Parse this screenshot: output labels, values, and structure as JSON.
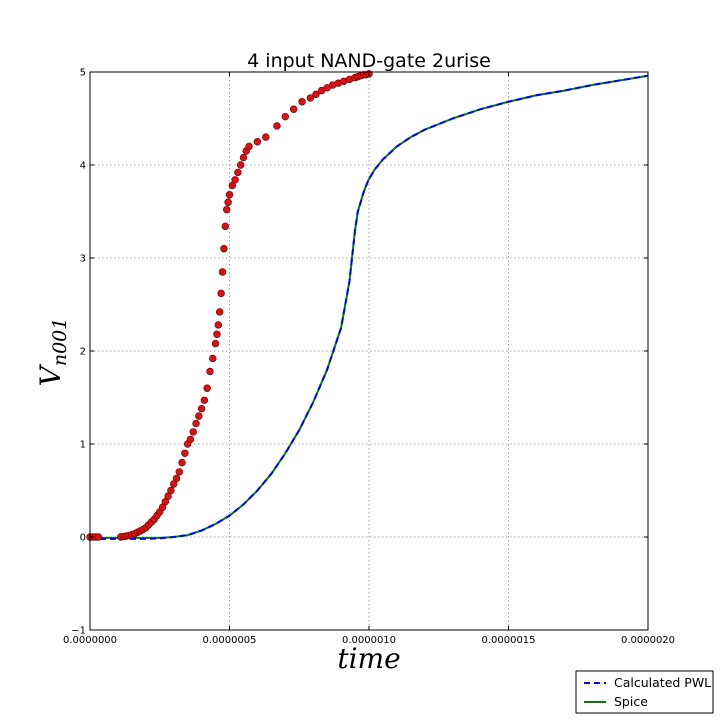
{
  "chart_data": {
    "type": "line",
    "title": "4 input NAND-gate   2urise",
    "xlabel": "time",
    "ylabel_main": "V",
    "ylabel_sub": "n001",
    "xlim": [
      0,
      2e-06
    ],
    "ylim": [
      -1,
      5
    ],
    "grid": true,
    "legend_position": "bottom-right-outside",
    "x_ticks": [
      {
        "value": 0,
        "label": "0.0000000"
      },
      {
        "value": 5e-07,
        "label": "0.0000005"
      },
      {
        "value": 1e-06,
        "label": "0.0000010"
      },
      {
        "value": 1.5e-06,
        "label": "0.0000015"
      },
      {
        "value": 2e-06,
        "label": "0.0000020"
      }
    ],
    "y_ticks": [
      {
        "value": -1,
        "label": "−1"
      },
      {
        "value": 0,
        "label": "0"
      },
      {
        "value": 1,
        "label": "1"
      },
      {
        "value": 2,
        "label": "2"
      },
      {
        "value": 3,
        "label": "3"
      },
      {
        "value": 4,
        "label": "4"
      },
      {
        "value": 5,
        "label": "5"
      }
    ],
    "series": [
      {
        "name": "Calculated PWL",
        "style": "dashed",
        "color": "#0000ff",
        "x": [
          0,
          5e-08,
          1e-07,
          1.5e-07,
          2e-07,
          2.5e-07,
          3e-07,
          3.5e-07,
          4e-07,
          4.5e-07,
          5e-07,
          5.5e-07,
          6e-07,
          6.5e-07,
          7e-07,
          7.5e-07,
          8e-07,
          8.5e-07,
          9e-07,
          9.3e-07,
          9.5e-07,
          9.6e-07,
          9.7e-07,
          9.8e-07,
          9.9e-07,
          1e-06,
          1.02e-06,
          1.05e-06,
          1.1e-06,
          1.15e-06,
          1.2e-06,
          1.3e-06,
          1.4e-06,
          1.5e-06,
          1.6e-06,
          1.7e-06,
          1.8e-06,
          1.9e-06,
          2e-06
        ],
        "y": [
          -0.02,
          -0.02,
          -0.02,
          -0.02,
          -0.02,
          -0.015,
          0.0,
          0.02,
          0.07,
          0.14,
          0.23,
          0.35,
          0.5,
          0.68,
          0.9,
          1.15,
          1.45,
          1.8,
          2.25,
          2.75,
          3.3,
          3.5,
          3.6,
          3.7,
          3.78,
          3.85,
          3.95,
          4.06,
          4.2,
          4.3,
          4.38,
          4.5,
          4.6,
          4.68,
          4.75,
          4.8,
          4.86,
          4.91,
          4.96
        ]
      },
      {
        "name": "Spice",
        "style": "solid",
        "color": "#007f00",
        "x": [
          0,
          5e-08,
          1e-07,
          1.5e-07,
          2e-07,
          2.5e-07,
          3e-07,
          3.5e-07,
          4e-07,
          4.5e-07,
          5e-07,
          5.5e-07,
          6e-07,
          6.5e-07,
          7e-07,
          7.5e-07,
          8e-07,
          8.5e-07,
          9e-07,
          9.3e-07,
          9.5e-07,
          9.6e-07,
          9.7e-07,
          9.8e-07,
          9.9e-07,
          1e-06,
          1.02e-06,
          1.05e-06,
          1.1e-06,
          1.15e-06,
          1.2e-06,
          1.3e-06,
          1.4e-06,
          1.5e-06,
          1.6e-06,
          1.7e-06,
          1.8e-06,
          1.9e-06,
          2e-06
        ],
        "y": [
          -0.01,
          -0.01,
          -0.01,
          -0.01,
          -0.01,
          -0.01,
          0.0,
          0.02,
          0.07,
          0.14,
          0.23,
          0.35,
          0.5,
          0.68,
          0.9,
          1.15,
          1.45,
          1.8,
          2.25,
          2.75,
          3.3,
          3.5,
          3.6,
          3.7,
          3.78,
          3.85,
          3.95,
          4.06,
          4.2,
          4.3,
          4.38,
          4.5,
          4.6,
          4.68,
          4.75,
          4.8,
          4.86,
          4.91,
          4.96
        ]
      },
      {
        "style": "markers",
        "color": "#dd1111",
        "x": [
          0,
          1e-08,
          2e-08,
          3e-08,
          1.1e-07,
          1.2e-07,
          1.3e-07,
          1.4e-07,
          1.5e-07,
          1.6e-07,
          1.7e-07,
          1.8e-07,
          1.9e-07,
          2e-07,
          2.1e-07,
          2.2e-07,
          2.3e-07,
          2.4e-07,
          2.5e-07,
          2.6e-07,
          2.7e-07,
          2.8e-07,
          2.9e-07,
          3e-07,
          3.1e-07,
          3.2e-07,
          3.3e-07,
          3.4e-07,
          3.5e-07,
          3.6e-07,
          3.7e-07,
          3.8e-07,
          3.9e-07,
          4e-07,
          4.1e-07,
          4.2e-07,
          4.3e-07,
          4.4e-07,
          4.5e-07,
          4.55e-07,
          4.6e-07,
          4.65e-07,
          4.7e-07,
          4.75e-07,
          4.8e-07,
          4.85e-07,
          4.9e-07,
          4.95e-07,
          5e-07,
          5.1e-07,
          5.2e-07,
          5.3e-07,
          5.4e-07,
          5.5e-07,
          5.6e-07,
          5.7e-07,
          6e-07,
          6.3e-07,
          6.7e-07,
          7e-07,
          7.3e-07,
          7.6e-07,
          7.9e-07,
          8.1e-07,
          8.3e-07,
          8.5e-07,
          8.7e-07,
          8.9e-07,
          9.1e-07,
          9.3e-07,
          9.5e-07,
          9.6e-07,
          9.7e-07,
          9.8e-07,
          9.9e-07,
          1e-06
        ],
        "y": [
          0,
          0,
          0,
          0,
          0,
          0.005,
          0.01,
          0.015,
          0.025,
          0.035,
          0.05,
          0.065,
          0.08,
          0.1,
          0.13,
          0.16,
          0.19,
          0.23,
          0.27,
          0.32,
          0.38,
          0.44,
          0.5,
          0.57,
          0.63,
          0.7,
          0.8,
          0.9,
          1.0,
          1.05,
          1.13,
          1.22,
          1.3,
          1.38,
          1.47,
          1.6,
          1.78,
          1.92,
          2.08,
          2.18,
          2.28,
          2.42,
          2.62,
          2.85,
          3.1,
          3.34,
          3.52,
          3.6,
          3.68,
          3.78,
          3.84,
          3.92,
          4.0,
          4.08,
          4.15,
          4.2,
          4.25,
          4.3,
          4.42,
          4.52,
          4.6,
          4.68,
          4.72,
          4.76,
          4.8,
          4.83,
          4.86,
          4.88,
          4.9,
          4.92,
          4.94,
          4.95,
          4.96,
          4.97,
          4.97,
          4.98
        ]
      }
    ]
  }
}
